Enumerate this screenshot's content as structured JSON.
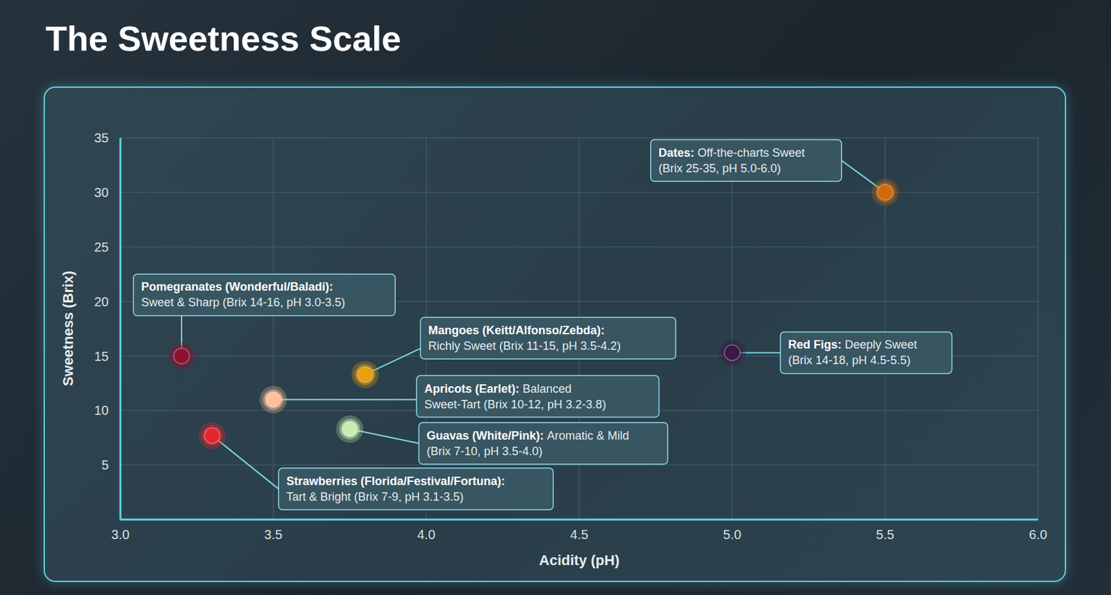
{
  "chart_data": {
    "type": "scatter",
    "title": "The Sweetness Scale",
    "x_label": "Acidity (pH)",
    "y_label": "Sweetness (Brix)",
    "xlim": [
      3,
      6
    ],
    "xticks": [
      {
        "value": 3,
        "label": "3.0"
      },
      3.5,
      {
        "value": 4,
        "label": "4.0"
      },
      4.5,
      {
        "value": 5,
        "label": "5.0"
      },
      5.5,
      {
        "value": 6,
        "label": "6.0"
      }
    ],
    "ylim": [
      0,
      35
    ],
    "yticks": [
      5,
      10,
      15,
      20,
      25,
      30,
      35
    ],
    "grid": true,
    "points": [
      {
        "label": "Pomegranates (Wonderful/Baladi):",
        "text": "Sweet & Sharp (Brix 14-16, pH 3.0-3.5)",
        "x": 3.2,
        "y": 15,
        "color": "#8e1230"
      },
      {
        "label": "Strawberries (Florida/Festival/Fortuna):",
        "text": "Tart & Bright (Brix 7-9, pH 3.1-3.5)",
        "x": 3.3,
        "y": 7.7,
        "color": "#e5262e"
      },
      {
        "label": "Apricots (Earlet):",
        "text": "Balanced Sweet-Tart (Brix 10-12, pH 3.2-3.8)",
        "x": 3.5,
        "y": 11,
        "color": "#ffc29a"
      },
      {
        "label": "Guavas (White/Pink):",
        "text": "Aromatic & Mild (Brix 7-10, pH 3.5-4.0)",
        "x": 3.75,
        "y": 8.3,
        "color": "#c5eeb0"
      },
      {
        "label": "Mangoes (Keitt/Alfonso/Zebda):",
        "text": "Richly Sweet (Brix 11-15, pH 3.5-4.2)",
        "x": 3.8,
        "y": 13.3,
        "color": "#e8a010"
      },
      {
        "label": "Red Figs:",
        "text": "Deeply Sweet (Brix 14-18, pH 4.5-5.5)",
        "x": 5.0,
        "y": 15.3,
        "color": "#3b1846"
      },
      {
        "label": "Dates:",
        "text": "Off-the-charts Sweet (Brix 25-35, pH 5.0-6.0)",
        "x": 5.5,
        "y": 30,
        "color": "#d06a0c"
      }
    ]
  }
}
